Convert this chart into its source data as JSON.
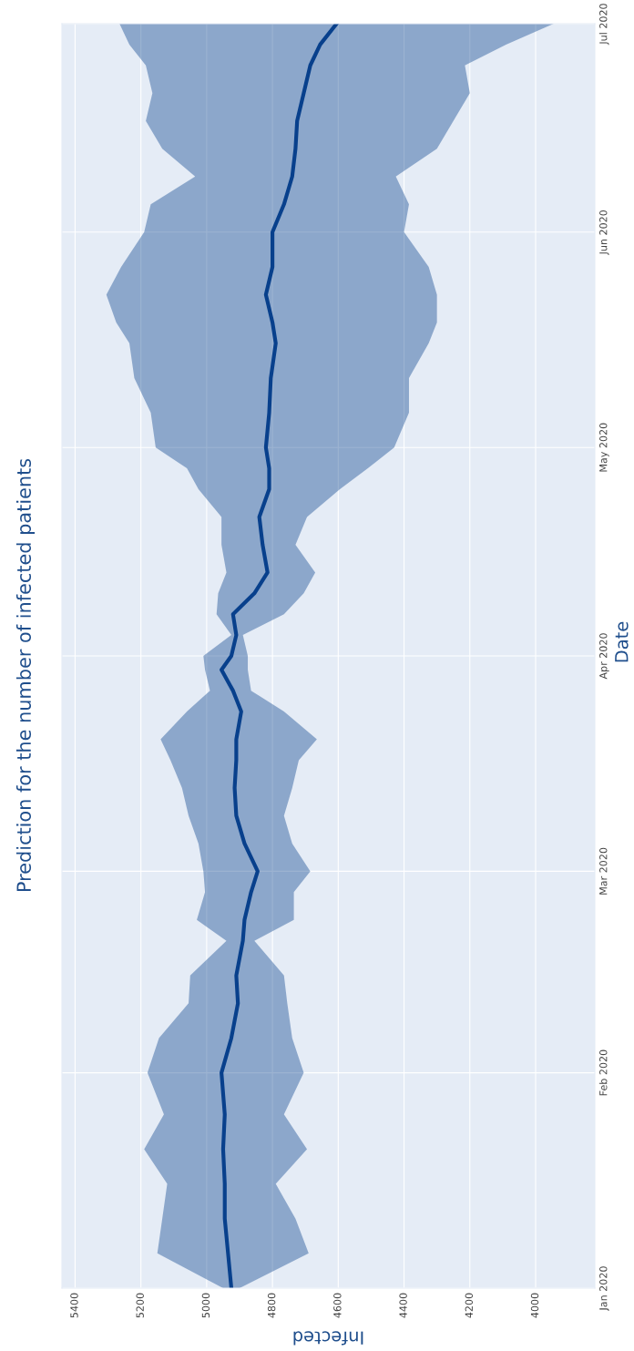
{
  "chart_data": {
    "type": "line",
    "title": "Prediction for the number of infected patients",
    "orientation": "horizontal",
    "xlabel": "Infected",
    "ylabel": "Date",
    "x": [
      "2020-01-01",
      "2020-01-06",
      "2020-01-11",
      "2020-01-16",
      "2020-01-21",
      "2020-01-26",
      "2020-02-01",
      "2020-02-06",
      "2020-02-11",
      "2020-02-15",
      "2020-02-20",
      "2020-02-23",
      "2020-02-27",
      "2020-03-01",
      "2020-03-05",
      "2020-03-09",
      "2020-03-13",
      "2020-03-17",
      "2020-03-20",
      "2020-03-24",
      "2020-03-27",
      "2020-03-30",
      "2020-04-01",
      "2020-04-04",
      "2020-04-07",
      "2020-04-10",
      "2020-04-13",
      "2020-04-17",
      "2020-04-21",
      "2020-04-25",
      "2020-04-28",
      "2020-05-01",
      "2020-05-06",
      "2020-05-11",
      "2020-05-16",
      "2020-05-19",
      "2020-05-23",
      "2020-05-27",
      "2020-06-01",
      "2020-06-05",
      "2020-06-09",
      "2020-06-13",
      "2020-06-17",
      "2020-06-21",
      "2020-06-25",
      "2020-06-28",
      "2020-07-01"
    ],
    "series": [
      {
        "color": "#08408c",
        "values": [
          4925,
          4935,
          4945,
          4945,
          4950,
          4945,
          4955,
          4925,
          4905,
          4910,
          4890,
          4885,
          4865,
          4845,
          4885,
          4910,
          4915,
          4910,
          4910,
          4895,
          4920,
          4955,
          4925,
          4910,
          4920,
          4855,
          4815,
          4830,
          4840,
          4810,
          4810,
          4820,
          4810,
          4805,
          4790,
          4800,
          4820,
          4800,
          4800,
          4765,
          4740,
          4730,
          4725,
          4705,
          4685,
          4655,
          4605
        ],
        "upper": [
          4950,
          5150,
          5135,
          5120,
          5190,
          5130,
          5180,
          5145,
          5055,
          5050,
          4940,
          5030,
          5005,
          5010,
          5025,
          5055,
          5075,
          5110,
          5140,
          5060,
          4990,
          5005,
          5010,
          4925,
          4970,
          4965,
          4940,
          4955,
          4955,
          5025,
          5060,
          5155,
          5170,
          5220,
          5235,
          5275,
          5305,
          5260,
          5190,
          5170,
          5035,
          5135,
          5185,
          5165,
          5185,
          5235,
          5265
        ],
        "lower": [
          4900,
          4690,
          4730,
          4790,
          4695,
          4765,
          4705,
          4740,
          4755,
          4765,
          4855,
          4735,
          4735,
          4685,
          4740,
          4765,
          4740,
          4720,
          4665,
          4765,
          4865,
          4875,
          4875,
          4890,
          4765,
          4705,
          4670,
          4730,
          4695,
          4595,
          4510,
          4430,
          4385,
          4385,
          4325,
          4300,
          4300,
          4325,
          4400,
          4385,
          4425,
          4300,
          4250,
          4200,
          4215,
          4090,
          3945
        ]
      }
    ],
    "ylim": [
      "2020-01-01",
      "2020-07-01"
    ],
    "yticks": [
      {
        "value": "2020-01-01",
        "label": "Jan 2020"
      },
      {
        "value": "2020-02-01",
        "label": "Feb 2020"
      },
      {
        "value": "2020-03-01",
        "label": "Mar 2020"
      },
      {
        "value": "2020-04-01",
        "label": "Apr 2020"
      },
      {
        "value": "2020-05-01",
        "label": "May 2020"
      },
      {
        "value": "2020-06-01",
        "label": "Jun 2020"
      },
      {
        "value": "2020-07-01",
        "label": "Jul 2020"
      }
    ],
    "xlim": [
      5440,
      3820
    ],
    "xticks": [
      4000,
      4200,
      4400,
      4600,
      4800,
      5000,
      5200,
      5400
    ],
    "grid": true,
    "legend": false,
    "marker": "none",
    "line_style": "solid"
  }
}
